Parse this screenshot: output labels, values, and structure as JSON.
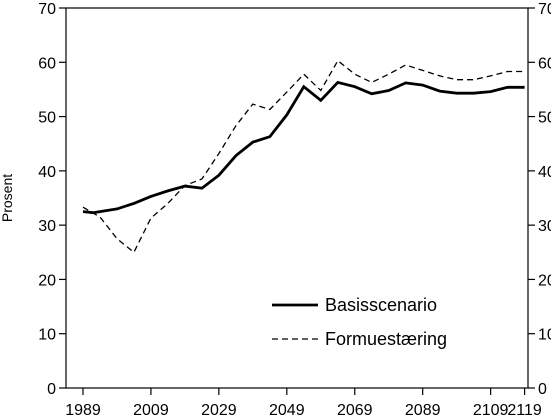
{
  "chart_data": {
    "type": "line",
    "title": "",
    "xlabel": "",
    "ylabel": "Prosent",
    "xlim": [
      1984,
      2120
    ],
    "ylim": [
      0,
      70
    ],
    "xticks": [
      "1989",
      "2009",
      "2029",
      "2049",
      "2069",
      "2089",
      "2109",
      "2119"
    ],
    "yticks": [
      "0",
      "10",
      "20",
      "30",
      "40",
      "50",
      "60",
      "70"
    ],
    "grid": false,
    "legend_position": "bottom-right",
    "series": [
      {
        "name": "Basisscenario",
        "style": "solid",
        "color": "#000000",
        "x": [
          1989,
          1992,
          1994,
          1999,
          2004,
          2009,
          2014,
          2019,
          2024,
          2029,
          2034,
          2039,
          2044,
          2049,
          2054,
          2059,
          2064,
          2069,
          2074,
          2079,
          2084,
          2089,
          2094,
          2099,
          2104,
          2109,
          2114,
          2119
        ],
        "y": [
          32.5,
          32.3,
          32.5,
          33.0,
          34.0,
          35.3,
          36.3,
          37.2,
          36.8,
          39.2,
          42.8,
          45.3,
          46.3,
          50.3,
          55.5,
          53.0,
          56.3,
          55.5,
          54.2,
          54.8,
          56.2,
          55.8,
          54.7,
          54.3,
          54.3,
          54.6,
          55.4,
          55.4
        ]
      },
      {
        "name": "Formuestæring",
        "style": "dashed",
        "color": "#000000",
        "x": [
          1989,
          1994,
          1999,
          2004,
          2009,
          2014,
          2019,
          2024,
          2029,
          2034,
          2039,
          2044,
          2049,
          2054,
          2059,
          2064,
          2069,
          2074,
          2079,
          2084,
          2089,
          2094,
          2099,
          2104,
          2109,
          2114,
          2119
        ],
        "y": [
          33.3,
          31.5,
          27.5,
          25.0,
          31.3,
          34.0,
          37.3,
          38.5,
          43.2,
          48.3,
          52.3,
          51.3,
          54.5,
          57.8,
          54.8,
          60.3,
          57.8,
          56.3,
          57.8,
          59.5,
          58.5,
          57.5,
          56.8,
          56.8,
          57.5,
          58.3,
          58.3
        ]
      }
    ]
  }
}
